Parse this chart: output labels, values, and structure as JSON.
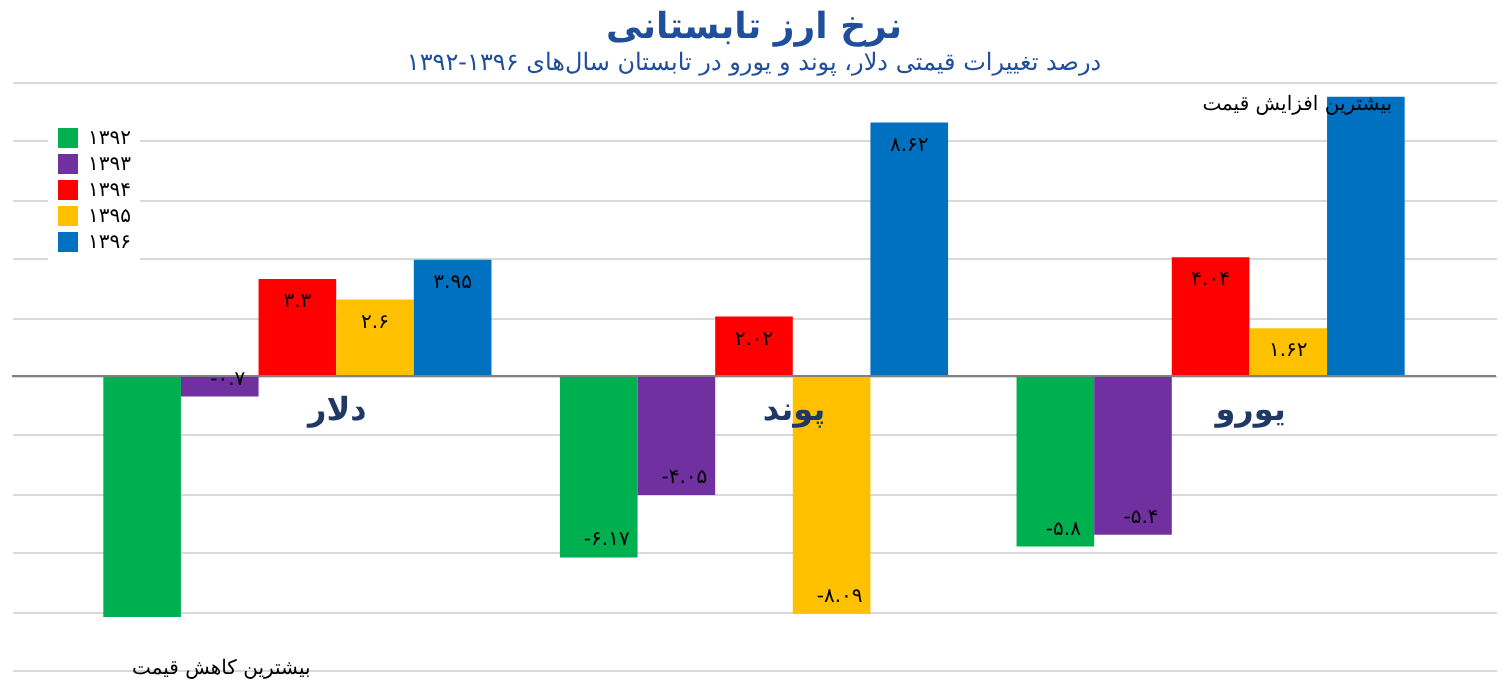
{
  "chart_data": {
    "type": "bar",
    "title": "نرخ ارز تابستانی",
    "subtitle": "درصد تغییرات قیمتی دلار، پوند و یورو در تابستان سال‌های ۱۳۹۶-۱۳۹۲",
    "categories": [
      "دلار",
      "پوند",
      "یورو"
    ],
    "series": [
      {
        "name": "۱۳۹۲",
        "color": "#00b050",
        "values": [
          -8.2,
          -6.17,
          -5.8
        ],
        "value_labels": [
          null,
          "-۶.۱۷",
          "-۵.۸"
        ]
      },
      {
        "name": "۱۳۹۳",
        "color": "#7030a0",
        "values": [
          -0.7,
          -4.05,
          -5.4
        ],
        "value_labels": [
          "-۰.۷",
          "-۴.۰۵",
          "-۵.۴"
        ]
      },
      {
        "name": "۱۳۹۴",
        "color": "#ff0000",
        "values": [
          3.3,
          2.02,
          4.04
        ],
        "value_labels": [
          "۳.۳",
          "۲.۰۲",
          "۴.۰۴"
        ]
      },
      {
        "name": "۱۳۹۵",
        "color": "#ffc000",
        "values": [
          2.6,
          -8.09,
          1.62
        ],
        "value_labels": [
          "۲.۶",
          "-۸.۰۹",
          "۱.۶۲"
        ]
      },
      {
        "name": "۱۳۹۶",
        "color": "#0070c0",
        "values": [
          3.95,
          8.62,
          9.5
        ],
        "value_labels": [
          "۳.۹۵",
          "۸.۶۲",
          null
        ]
      }
    ],
    "grid": "y",
    "legend": "top left",
    "tick_labels": false,
    "annotations": [
      "بیشترین کاهش قیمت",
      "بیشترین افزایش قیمت"
    ]
  }
}
